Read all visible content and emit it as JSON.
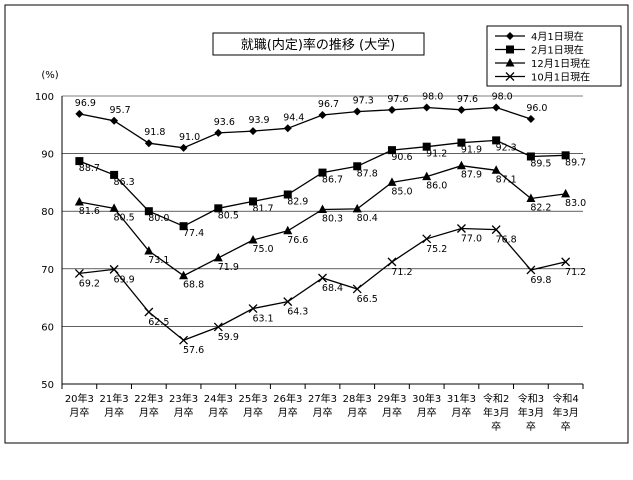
{
  "chart_data": {
    "type": "line",
    "title": "就職(内定)率の推移 (大学)",
    "ylabel": "(%)",
    "ylim": [
      50,
      100
    ],
    "yticks": [
      50,
      60,
      70,
      80,
      90,
      100
    ],
    "categories": [
      [
        "20年3",
        "月卒"
      ],
      [
        "21年3",
        "月卒"
      ],
      [
        "22年3",
        "月卒"
      ],
      [
        "23年3",
        "月卒"
      ],
      [
        "24年3",
        "月卒"
      ],
      [
        "25年3",
        "月卒"
      ],
      [
        "26年3",
        "月卒"
      ],
      [
        "27年3",
        "月卒"
      ],
      [
        "28年3",
        "月卒"
      ],
      [
        "29年3",
        "月卒"
      ],
      [
        "30年3",
        "月卒"
      ],
      [
        "31年3",
        "月卒"
      ],
      [
        "令和2",
        "年3月",
        "卒"
      ],
      [
        "令和3",
        "年3月",
        "卒"
      ],
      [
        "令和4",
        "年3月",
        "卒"
      ]
    ],
    "series": [
      {
        "name": "4月1日現在",
        "marker": "diamond",
        "values": [
          96.9,
          95.7,
          91.8,
          91.0,
          93.6,
          93.9,
          94.4,
          96.7,
          97.3,
          97.6,
          98.0,
          97.6,
          98.0,
          96.0,
          null
        ],
        "labels": [
          "96.9",
          "95.7",
          "91.8",
          "91.0",
          "93.6",
          "93.9",
          "94.4",
          "96.7",
          "97.3",
          "97.6",
          "98.0",
          "97.6",
          "98.0",
          "96.0",
          null
        ]
      },
      {
        "name": "2月1日現在",
        "marker": "square",
        "values": [
          88.7,
          86.3,
          80.0,
          77.4,
          80.5,
          81.7,
          82.9,
          86.7,
          87.8,
          90.6,
          91.2,
          91.9,
          92.3,
          89.5,
          89.7
        ],
        "labels": [
          "88.7",
          "86.3",
          "80.0",
          "77.4",
          "80.5",
          "81.7",
          "82.9",
          "86.7",
          "87.8",
          "90.6",
          "91.2",
          "91.9",
          "92.3",
          "89.5",
          "89.7"
        ]
      },
      {
        "name": "12月1日現在",
        "marker": "triangle",
        "values": [
          81.6,
          80.5,
          73.1,
          68.8,
          71.9,
          75.0,
          76.6,
          80.3,
          80.4,
          85.0,
          86.0,
          87.9,
          87.1,
          82.2,
          83.0
        ],
        "labels": [
          "81.6",
          "80.5",
          "73.1",
          "68.8",
          "71.9",
          "75.0",
          "76.6",
          "80.3",
          "80.4",
          "85.0",
          "86.0",
          "87.9",
          "87.1",
          "82.2",
          "83.0"
        ]
      },
      {
        "name": "10月1日現在",
        "marker": "cross",
        "values": [
          69.2,
          69.9,
          62.5,
          57.6,
          59.9,
          63.1,
          64.3,
          68.4,
          66.5,
          71.2,
          75.2,
          77.0,
          76.8,
          69.8,
          71.2
        ],
        "labels": [
          "69.2",
          "69.9",
          "62.5",
          "57.6",
          "59.9",
          "63.1",
          "64.3",
          "68.4",
          "66.5",
          "71.2",
          "75.2",
          "77.0",
          "76.8",
          "69.8",
          "71.2"
        ]
      }
    ],
    "grid": true,
    "legend": "top-right"
  }
}
